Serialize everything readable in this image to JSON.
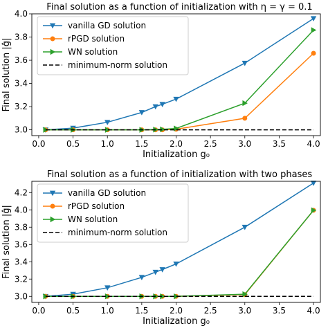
{
  "chart_data": [
    {
      "type": "line",
      "title": "Final solution as a function of initialization with η = γ = 0.1",
      "xlabel": "Initialization g₀",
      "ylabel": "Final solution |ĝ|",
      "xlim": [
        -0.1,
        4.1
      ],
      "ylim": [
        2.95,
        4.0
      ],
      "xticks": [
        0.0,
        0.5,
        1.0,
        1.5,
        2.0,
        2.5,
        3.0,
        3.5,
        4.0
      ],
      "xtick_labels": [
        "0.0",
        "0.5",
        "1.0",
        "1.5",
        "2.0",
        "2.5",
        "3.0",
        "3.5",
        "4.0"
      ],
      "yticks": [
        3.0,
        3.2,
        3.4,
        3.6,
        3.8,
        4.0
      ],
      "ytick_labels": [
        "3.0",
        "3.2",
        "3.4",
        "3.6",
        "3.8",
        "4.0"
      ],
      "grid": false,
      "legend_position": "top-left",
      "x": [
        0.1,
        0.5,
        1.0,
        1.5,
        1.7,
        1.8,
        2.0,
        3.0,
        4.0
      ],
      "series": [
        {
          "name": "vanilla GD solution",
          "color": "#1f77b4",
          "marker": "triangle-down",
          "dashed": false,
          "values": [
            3.0,
            3.015,
            3.065,
            3.15,
            3.2,
            3.22,
            3.265,
            3.575,
            3.96
          ]
        },
        {
          "name": "rPGD solution",
          "color": "#ff7f0e",
          "marker": "circle",
          "dashed": false,
          "values": [
            3.0,
            3.0,
            3.0,
            3.0,
            3.0,
            3.0,
            3.005,
            3.1,
            3.66
          ]
        },
        {
          "name": "WN solution",
          "color": "#2ca02c",
          "marker": "triangle-right",
          "dashed": false,
          "values": [
            3.0,
            3.0,
            3.0,
            3.0,
            3.002,
            3.004,
            3.012,
            3.23,
            3.86
          ]
        },
        {
          "name": "minimum-norm solution",
          "color": "#000000",
          "marker": "none",
          "dashed": true,
          "x": [
            0.1,
            4.0
          ],
          "values": [
            3.0,
            3.0
          ]
        }
      ]
    },
    {
      "type": "line",
      "title": "Final solution as a function of initialization with two phases",
      "xlabel": "Initialization g₀",
      "ylabel": "Final solution |ĝ|",
      "xlim": [
        -0.1,
        4.1
      ],
      "ylim": [
        2.93,
        4.33
      ],
      "xticks": [
        0.0,
        0.5,
        1.0,
        1.5,
        2.0,
        2.5,
        3.0,
        3.5,
        4.0
      ],
      "xtick_labels": [
        "0.0",
        "0.5",
        "1.0",
        "1.5",
        "2.0",
        "2.5",
        "3.0",
        "3.5",
        "4.0"
      ],
      "yticks": [
        3.0,
        3.2,
        3.4,
        3.6,
        3.8,
        4.0,
        4.2
      ],
      "ytick_labels": [
        "3.0",
        "3.2",
        "3.4",
        "3.6",
        "3.8",
        "4.0",
        "4.2"
      ],
      "grid": false,
      "legend_position": "top-left",
      "x": [
        0.1,
        0.5,
        1.0,
        1.5,
        1.7,
        1.8,
        2.0,
        3.0,
        4.0
      ],
      "series": [
        {
          "name": "vanilla GD solution",
          "color": "#1f77b4",
          "marker": "triangle-down",
          "dashed": false,
          "values": [
            3.0,
            3.025,
            3.1,
            3.22,
            3.28,
            3.31,
            3.375,
            3.8,
            4.31
          ]
        },
        {
          "name": "rPGD solution",
          "color": "#ff7f0e",
          "marker": "circle",
          "dashed": false,
          "values": [
            3.0,
            3.0,
            3.0,
            3.0,
            3.0,
            3.0,
            3.0,
            3.02,
            3.995
          ]
        },
        {
          "name": "WN solution",
          "color": "#2ca02c",
          "marker": "triangle-right",
          "dashed": false,
          "values": [
            3.0,
            3.0,
            3.0,
            3.0,
            3.0,
            3.0,
            3.0,
            3.025,
            3.995
          ]
        },
        {
          "name": "minimum-norm solution",
          "color": "#000000",
          "marker": "none",
          "dashed": true,
          "x": [
            0.1,
            4.0
          ],
          "values": [
            3.0,
            3.0
          ]
        }
      ]
    }
  ]
}
